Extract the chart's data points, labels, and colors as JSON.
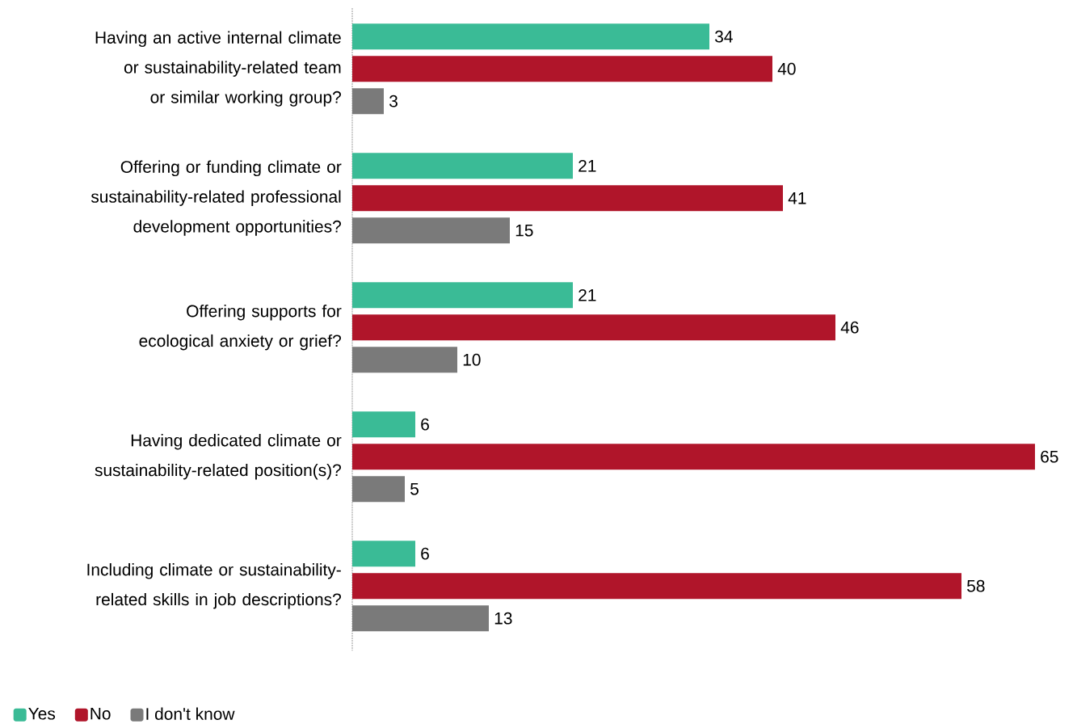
{
  "chart_data": {
    "type": "bar",
    "orientation": "horizontal",
    "categories": [
      "Having an active internal climate or sustainability-related team or similar working group?",
      "Offering or funding climate or sustainability-related professional development opportunities?",
      "Offering supports for ecological anxiety or grief?",
      "Having dedicated climate or sustainability-related position(s)?",
      "Including climate or sustainability-related skills in job descriptions?"
    ],
    "series": [
      {
        "name": "Yes",
        "color": "#3abb96",
        "values": [
          34,
          21,
          21,
          6,
          6
        ]
      },
      {
        "name": "No",
        "color": "#b0152a",
        "values": [
          40,
          41,
          46,
          65,
          58
        ]
      },
      {
        "name": "I don't know",
        "color": "#7a7a7a",
        "values": [
          3,
          15,
          10,
          5,
          13
        ]
      }
    ],
    "data_labels": true,
    "grid": false,
    "legend": "bottom left",
    "tick_labels": "y"
  }
}
